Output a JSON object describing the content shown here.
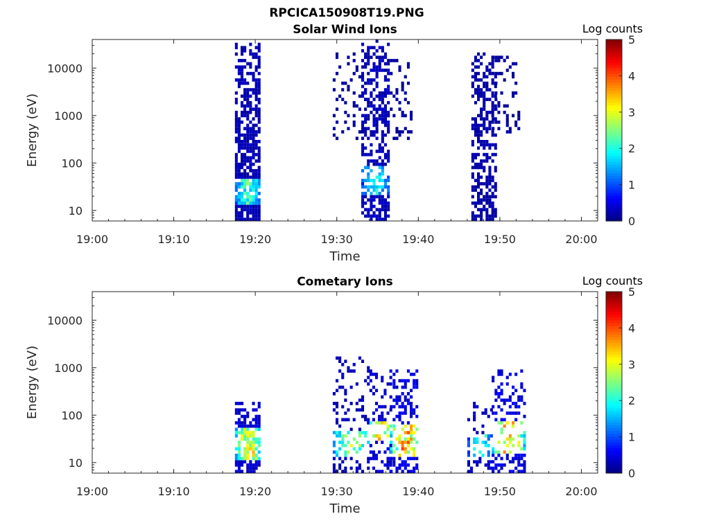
{
  "figure": {
    "suptitle": "RPCICA150908T19.PNG"
  },
  "chart_data": [
    {
      "type": "heatmap",
      "title": "Solar Wind Ions",
      "xlabel": "Time",
      "ylabel": "Energy (eV)",
      "x_ticks": [
        "19:00",
        "19:10",
        "19:20",
        "19:30",
        "19:40",
        "19:50",
        "20:00"
      ],
      "x_tick_minutes": [
        0,
        10,
        20,
        30,
        40,
        50,
        60
      ],
      "xlim_minutes": [
        0,
        62
      ],
      "y_ticks": [
        "10",
        "100",
        "1000",
        "10000"
      ],
      "y_tick_values": [
        10,
        100,
        1000,
        10000
      ],
      "ylim": [
        6,
        40000
      ],
      "y_scale": "log",
      "colorbar": {
        "label": "Log counts",
        "range": [
          0,
          5
        ],
        "ticks": [
          "0",
          "1",
          "2",
          "3",
          "4",
          "5"
        ],
        "colormap": "jet"
      },
      "bursts": [
        {
          "t_start": 17.5,
          "t_end": 20.5,
          "e_min": 6,
          "e_max": 30000,
          "density": 0.85,
          "level": 0.25,
          "hot_e": [
            12,
            45
          ],
          "hot_level": 2.2
        },
        {
          "t_start": 29.5,
          "t_end": 39.0,
          "e_min": 300,
          "e_max": 20000,
          "density": 0.22,
          "level": 0.15
        },
        {
          "t_start": 33.0,
          "t_end": 36.5,
          "e_min": 6,
          "e_max": 40000,
          "density": 0.6,
          "level": 0.3,
          "hot_e": [
            20,
            80
          ],
          "hot_level": 1.8
        },
        {
          "t_start": 46.5,
          "t_end": 49.5,
          "e_min": 6,
          "e_max": 20000,
          "density": 0.65,
          "level": 0.2
        },
        {
          "t_start": 49.0,
          "t_end": 52.5,
          "e_min": 400,
          "e_max": 20000,
          "density": 0.25,
          "level": 0.15
        }
      ]
    },
    {
      "type": "heatmap",
      "title": "Cometary Ions",
      "xlabel": "Time",
      "ylabel": "Energy (eV)",
      "x_ticks": [
        "19:00",
        "19:10",
        "19:20",
        "19:30",
        "19:40",
        "19:50",
        "20:00"
      ],
      "x_tick_minutes": [
        0,
        10,
        20,
        30,
        40,
        50,
        60
      ],
      "xlim_minutes": [
        0,
        62
      ],
      "y_ticks": [
        "10",
        "100",
        "1000",
        "10000"
      ],
      "y_tick_values": [
        10,
        100,
        1000,
        10000
      ],
      "ylim": [
        6,
        40000
      ],
      "y_scale": "log",
      "colorbar": {
        "label": "Log counts",
        "range": [
          0,
          5
        ],
        "ticks": [
          "0",
          "1",
          "2",
          "3",
          "4",
          "5"
        ],
        "colormap": "jet"
      },
      "bursts": [
        {
          "t_start": 17.5,
          "t_end": 20.5,
          "e_min": 6,
          "e_max": 180,
          "density": 0.75,
          "level": 0.4,
          "hot_e": [
            10,
            50
          ],
          "hot_level": 3.2
        },
        {
          "t_start": 29.5,
          "t_end": 34.0,
          "e_min": 6,
          "e_max": 1500,
          "density": 0.35,
          "level": 0.3,
          "hot_e": [
            12,
            40
          ],
          "hot_level": 2.6
        },
        {
          "t_start": 34.0,
          "t_end": 36.5,
          "e_min": 6,
          "e_max": 900,
          "density": 0.4,
          "level": 0.4,
          "hot_e": [
            25,
            70
          ],
          "hot_level": 3.4
        },
        {
          "t_start": 36.5,
          "t_end": 40.0,
          "e_min": 6,
          "e_max": 900,
          "density": 0.45,
          "level": 0.5,
          "hot_e": [
            12,
            60
          ],
          "hot_level": 3.5
        },
        {
          "t_start": 46.0,
          "t_end": 49.0,
          "e_min": 6,
          "e_max": 180,
          "density": 0.35,
          "level": 0.3,
          "hot_e": [
            12,
            35
          ],
          "hot_level": 2.0
        },
        {
          "t_start": 49.0,
          "t_end": 53.0,
          "e_min": 6,
          "e_max": 900,
          "density": 0.45,
          "level": 0.5,
          "hot_e": [
            15,
            70
          ],
          "hot_level": 3.3
        }
      ]
    }
  ]
}
